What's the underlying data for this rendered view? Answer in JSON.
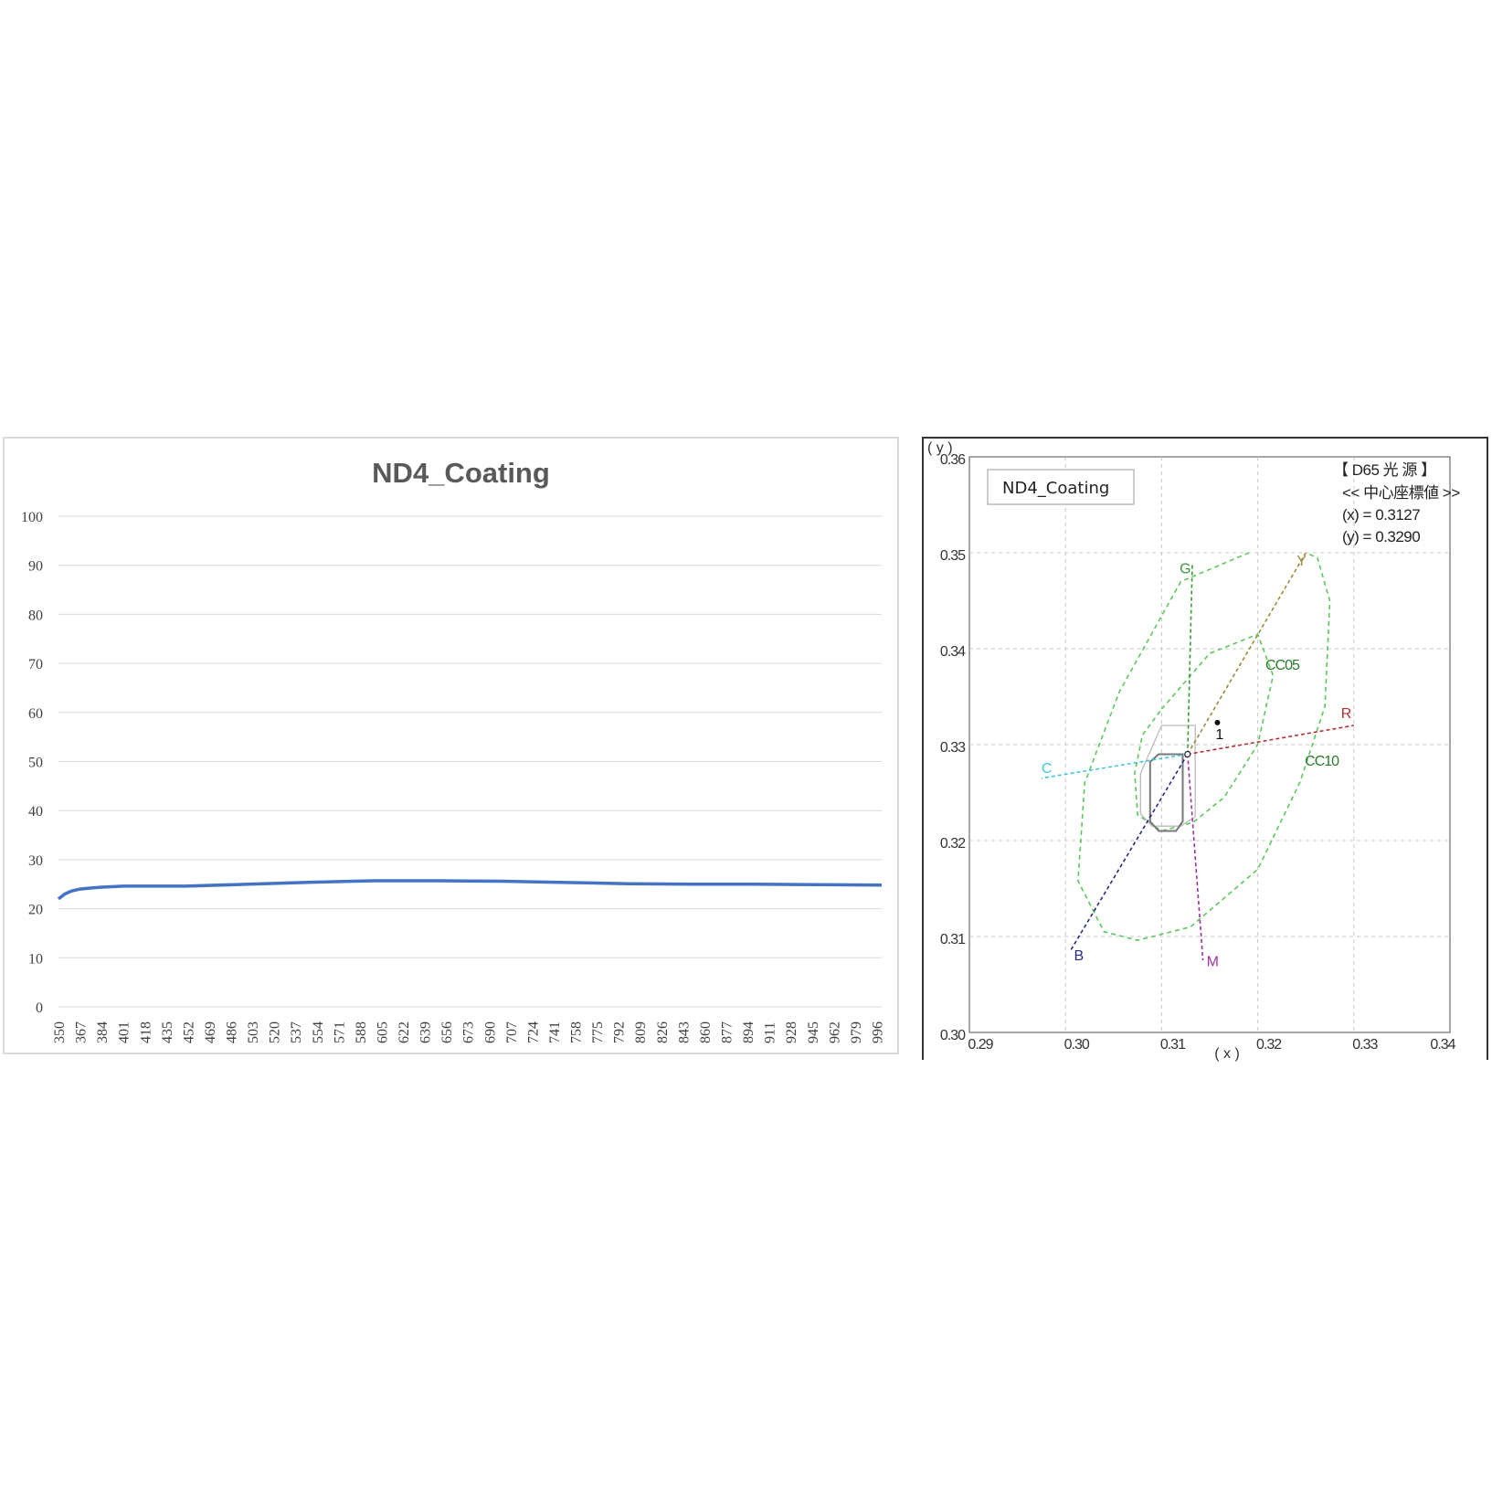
{
  "chart_data": [
    {
      "type": "line",
      "title": "ND4_Coating",
      "xlabel": "",
      "ylabel": "",
      "ylim": [
        0,
        100
      ],
      "yticks": [
        0,
        10,
        20,
        30,
        40,
        50,
        60,
        70,
        80,
        90,
        100
      ],
      "xticks": [
        "350",
        "367",
        "384",
        "401",
        "418",
        "435",
        "452",
        "469",
        "486",
        "503",
        "520",
        "537",
        "554",
        "571",
        "588",
        "605",
        "622",
        "639",
        "656",
        "673",
        "690",
        "707",
        "724",
        "741",
        "758",
        "775",
        "792",
        "809",
        "826",
        "843",
        "860",
        "877",
        "894",
        "911",
        "928",
        "945",
        "962",
        "979",
        "996"
      ],
      "xlim": [
        350,
        1000
      ],
      "grid": true,
      "line_color": "#4472c4",
      "series": [
        {
          "x": [
            350,
            355,
            360,
            367,
            375,
            384,
            401,
            450,
            500,
            550,
            600,
            650,
            700,
            760,
            800,
            850,
            900,
            950,
            1000
          ],
          "values": [
            22.0,
            23.0,
            23.6,
            24.0,
            24.2,
            24.4,
            24.6,
            24.6,
            25.0,
            25.4,
            25.7,
            25.7,
            25.6,
            25.3,
            25.1,
            25.0,
            25.0,
            24.9,
            24.8
          ]
        }
      ]
    },
    {
      "type": "scatter",
      "legend_label": "ND4_Coating",
      "xlabel": "( x )",
      "ylabel": "( y )",
      "xlim": [
        0.29,
        0.34
      ],
      "ylim": [
        0.3,
        0.36
      ],
      "xticks": [
        "0.29",
        "0.30",
        "0.31",
        "0.32",
        "0.33",
        "0.34"
      ],
      "yticks": [
        "0.30",
        "0.31",
        "0.32",
        "0.33",
        "0.34",
        "0.35",
        "0.36"
      ],
      "grid": true,
      "info": {
        "illuminant": "【 D65 光 源 】",
        "center_title": "<< 中心座標値 >>",
        "x_value": "(x) = 0.3127",
        "y_value": "(y) = 0.3290"
      },
      "center": [
        0.3127,
        0.329
      ],
      "sample_point": {
        "label": "1",
        "x": 0.3158,
        "y": 0.3323
      },
      "color_lines": [
        {
          "label": "G",
          "color": "#3a9a3a",
          "to": [
            0.3132,
            0.349
          ]
        },
        {
          "label": "Y",
          "color": "#9a8a3a",
          "to": [
            0.325,
            0.35
          ]
        },
        {
          "label": "R",
          "color": "#b03030",
          "to": [
            0.33,
            0.332
          ]
        },
        {
          "label": "C",
          "color": "#40c8d8",
          "to": [
            0.2975,
            0.3265
          ]
        },
        {
          "label": "B",
          "color": "#2a2a80",
          "to": [
            0.3005,
            0.3085
          ]
        },
        {
          "label": "M",
          "color": "#a030a0",
          "to": [
            0.3143,
            0.3075
          ]
        }
      ],
      "ellipses": [
        {
          "label": "CC05",
          "color": "#5cc85c",
          "points": [
            [
              0.31,
              0.3337
            ],
            [
              0.315,
              0.3395
            ],
            [
              0.32,
              0.3415
            ],
            [
              0.3216,
              0.3372
            ],
            [
              0.32,
              0.33
            ],
            [
              0.3165,
              0.3245
            ],
            [
              0.3133,
              0.3219
            ],
            [
              0.31,
              0.321
            ],
            [
              0.3075,
              0.3227
            ],
            [
              0.3072,
              0.327
            ],
            [
              0.308,
              0.331
            ],
            [
              0.31,
              0.3337
            ]
          ]
        },
        {
          "label": "CC10",
          "color": "#5cc85c",
          "points": [
            [
              0.3191,
              0.35
            ],
            [
              0.312,
              0.347
            ],
            [
              0.3056,
              0.3355
            ],
            [
              0.302,
              0.326
            ],
            [
              0.3013,
              0.3158
            ],
            [
              0.304,
              0.3105
            ],
            [
              0.3075,
              0.3096
            ],
            [
              0.313,
              0.311
            ],
            [
              0.32,
              0.317
            ],
            [
              0.3244,
              0.3261
            ],
            [
              0.327,
              0.334
            ],
            [
              0.3275,
              0.345
            ],
            [
              0.3262,
              0.3495
            ],
            [
              0.325,
              0.35
            ]
          ]
        }
      ],
      "tolerance_inner": [
        [
          0.3097,
          0.329
        ],
        [
          0.3122,
          0.329
        ],
        [
          0.3122,
          0.322
        ],
        [
          0.3115,
          0.321
        ],
        [
          0.3097,
          0.321
        ],
        [
          0.3088,
          0.322
        ],
        [
          0.3088,
          0.3282
        ]
      ],
      "tolerance_outer": [
        [
          0.31,
          0.332
        ],
        [
          0.3135,
          0.332
        ],
        [
          0.3135,
          0.3225
        ],
        [
          0.312,
          0.3215
        ],
        [
          0.309,
          0.3215
        ],
        [
          0.3078,
          0.3228
        ],
        [
          0.3078,
          0.327
        ]
      ],
      "label_colors": {
        "CC05": "#2a7a2a",
        "CC10": "#2a7a2a"
      }
    }
  ]
}
